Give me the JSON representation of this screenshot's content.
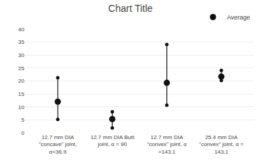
{
  "chart_data": {
    "type": "high_low",
    "title": "Chart Title",
    "categories": [
      "12.7 mm DIA\n\"concave\" joint,\nα=36.9",
      "12.7 mm DIA Butt\njoint, α = 90",
      "12.7 mm DIA\n\"convex\" joint, α\n=143.1",
      "25.4 mm DIA\n\"convex\" joint, α =\n143.1"
    ],
    "series": [
      {
        "name": "Average",
        "color": "#111111",
        "marker": "circle",
        "values": [
          12.0,
          5.3,
          19.3,
          21.7
        ],
        "highs": [
          21.3,
          8.1,
          34.1,
          24.1
        ],
        "lows": [
          5.2,
          1.9,
          10.7,
          20.2
        ]
      }
    ],
    "ylim": [
      0,
      40
    ],
    "yticks": [
      0,
      5,
      10,
      15,
      20,
      25,
      30,
      35,
      40
    ],
    "grid": true,
    "legend": "top"
  }
}
